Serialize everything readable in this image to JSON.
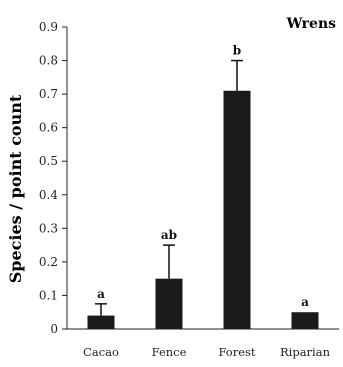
{
  "chart_data": {
    "type": "bar",
    "title": "Wrens",
    "xlabel": "",
    "ylabel": "Species / point count",
    "categories": [
      "Cacao",
      "Fence",
      "Forest",
      "Riparian"
    ],
    "values": [
      0.04,
      0.15,
      0.71,
      0.05
    ],
    "error_upper": [
      0.075,
      0.25,
      0.8,
      0.05
    ],
    "significance_labels": [
      "a",
      "ab",
      "b",
      "a"
    ],
    "ylim": [
      0,
      0.9
    ],
    "yticks": [
      "0",
      "0.1",
      "0.2",
      "0.3",
      "0.4",
      "0.5",
      "0.6",
      "0.7",
      "0.8",
      "0.9"
    ],
    "grid": false,
    "legend": "none",
    "bar_color": "#1a1a1a"
  }
}
